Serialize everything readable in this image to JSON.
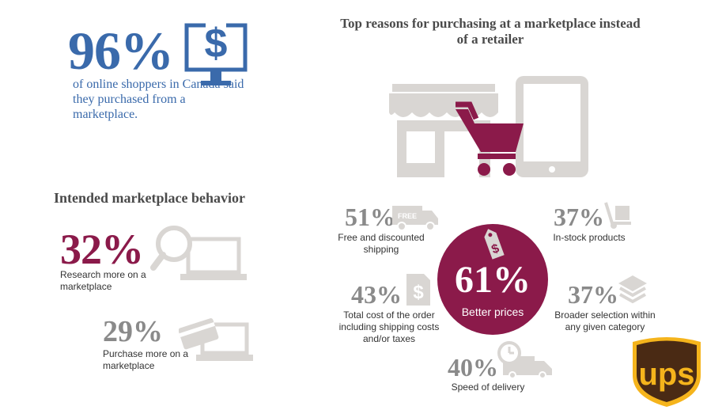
{
  "online": {
    "percent": "96%",
    "description": "of online shoppers in Canada said they purchased from a marketplace."
  },
  "behavior": {
    "title": "Intended marketplace behavior",
    "items": [
      {
        "percent": "32%",
        "label": "Research more on a marketplace"
      },
      {
        "percent": "29%",
        "label": "Purchase more on a marketplace"
      }
    ]
  },
  "reasons": {
    "title": "Top reasons for purchasing at a marketplace instead of a retailer",
    "main": {
      "percent": "61%",
      "label": "Better prices"
    },
    "items": [
      {
        "percent": "51%",
        "label": "Free and discounted shipping"
      },
      {
        "percent": "37%",
        "label": "In-stock products"
      },
      {
        "percent": "43%",
        "label": "Total cost of the order including shipping costs and/or taxes"
      },
      {
        "percent": "37%",
        "label": "Broader selection within any given category"
      },
      {
        "percent": "40%",
        "label": "Speed of delivery"
      }
    ],
    "truck_badge": "FREE"
  },
  "logo": {
    "text": "ups"
  },
  "colors": {
    "blue": "#3a6aab",
    "maroon": "#8b1a4a",
    "gray": "#d9d6d3",
    "ups_brown": "#4a2a14",
    "ups_gold": "#f5b41c"
  }
}
